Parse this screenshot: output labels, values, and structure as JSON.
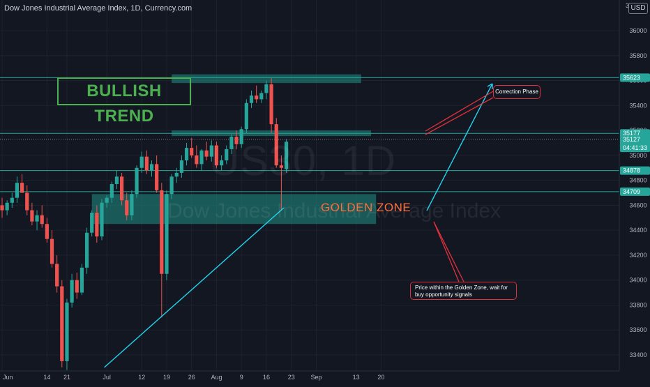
{
  "header": {
    "title": "Dow Jones Industrial Average Index, 1D, Currency.com",
    "currency_button": "USD"
  },
  "watermark": {
    "symbol": "US30, 1D",
    "name": "Dow Jones Industrial Average Index"
  },
  "annotations": {
    "trend_label": "BULLISH TREND",
    "zone_label": "GOLDEN ZONE",
    "note_correction": "Correction Phase",
    "note_golden": "Price within the Golden Zone, wait for buy opportunity signals"
  },
  "colors": {
    "background": "#131722",
    "up": "#26a69a",
    "down": "#ef5350",
    "zone": "#1f8f84",
    "trend_line": "#22d3ee",
    "callout": "#e0313b",
    "label_green": "#4caf50"
  },
  "chart_data": {
    "type": "candlestick",
    "title": "Dow Jones Industrial Average Index, 1D, Currency.com",
    "xlabel": "",
    "ylabel": "",
    "ylim": [
      33200,
      36200
    ],
    "y_ticks": [
      33400,
      33600,
      33800,
      34000,
      34200,
      34400,
      34600,
      34800,
      35000,
      35200,
      35400,
      35600,
      35800,
      36000
    ],
    "x_ticks": [
      {
        "i": 0,
        "label": "Jun"
      },
      {
        "i": 9,
        "label": "14"
      },
      {
        "i": 13,
        "label": "21"
      },
      {
        "i": 21,
        "label": "Jul"
      },
      {
        "i": 28,
        "label": "12"
      },
      {
        "i": 33,
        "label": "19"
      },
      {
        "i": 38,
        "label": "26"
      },
      {
        "i": 43,
        "label": "Aug"
      },
      {
        "i": 48,
        "label": "9"
      },
      {
        "i": 53,
        "label": "16"
      },
      {
        "i": 58,
        "label": "23"
      },
      {
        "i": 63,
        "label": "Sep"
      },
      {
        "i": 71,
        "label": "13"
      },
      {
        "i": 76,
        "label": "20"
      }
    ],
    "price_labels": [
      {
        "value": 35623,
        "label": "35623"
      },
      {
        "value": 35177,
        "label": "35177"
      },
      {
        "value": 35127,
        "label": "35127",
        "countdown": "04:41:33"
      },
      {
        "value": 34878,
        "label": "34878"
      },
      {
        "value": 34709,
        "label": "34709"
      }
    ],
    "levels": [
      {
        "value": 35623,
        "style": "solid"
      },
      {
        "value": 35177,
        "style": "solid"
      },
      {
        "value": 35127,
        "style": "dotted"
      },
      {
        "value": 34878,
        "style": "solid"
      },
      {
        "value": 34709,
        "style": "solid"
      }
    ],
    "zones": [
      {
        "i_start": 34,
        "i_end": 72,
        "top": 35650,
        "bottom": 35580
      },
      {
        "i_start": 34,
        "i_end": 74,
        "top": 35200,
        "bottom": 35155
      },
      {
        "i_start": 18,
        "i_end": 75,
        "top": 34690,
        "bottom": 34450
      }
    ],
    "trendline": {
      "from": {
        "i": 20.5,
        "value": 33300
      },
      "to": {
        "i": 56.5,
        "value": 34580
      }
    },
    "candles": [
      {
        "o": 34600,
        "h": 34660,
        "l": 34500,
        "c": 34560
      },
      {
        "o": 34560,
        "h": 34640,
        "l": 34520,
        "c": 34620
      },
      {
        "o": 34620,
        "h": 34700,
        "l": 34580,
        "c": 34660
      },
      {
        "o": 34660,
        "h": 34830,
        "l": 34620,
        "c": 34780
      },
      {
        "o": 34780,
        "h": 34850,
        "l": 34700,
        "c": 34700
      },
      {
        "o": 34700,
        "h": 34760,
        "l": 34520,
        "c": 34560
      },
      {
        "o": 34560,
        "h": 34620,
        "l": 34440,
        "c": 34470
      },
      {
        "o": 34470,
        "h": 34560,
        "l": 34400,
        "c": 34520
      },
      {
        "o": 34520,
        "h": 34600,
        "l": 34420,
        "c": 34450
      },
      {
        "o": 34450,
        "h": 34500,
        "l": 34300,
        "c": 34330
      },
      {
        "o": 34330,
        "h": 34400,
        "l": 34100,
        "c": 34130
      },
      {
        "o": 34130,
        "h": 34200,
        "l": 33900,
        "c": 33950
      },
      {
        "o": 33950,
        "h": 34000,
        "l": 33300,
        "c": 33350
      },
      {
        "o": 33350,
        "h": 33850,
        "l": 33280,
        "c": 33820
      },
      {
        "o": 33820,
        "h": 34050,
        "l": 33780,
        "c": 34000
      },
      {
        "o": 34000,
        "h": 34060,
        "l": 33850,
        "c": 33900
      },
      {
        "o": 33900,
        "h": 34130,
        "l": 33880,
        "c": 34100
      },
      {
        "o": 34100,
        "h": 34420,
        "l": 34050,
        "c": 34380
      },
      {
        "o": 34380,
        "h": 34560,
        "l": 34350,
        "c": 34540
      },
      {
        "o": 34540,
        "h": 34600,
        "l": 34300,
        "c": 34350
      },
      {
        "o": 34350,
        "h": 34650,
        "l": 34320,
        "c": 34620
      },
      {
        "o": 34620,
        "h": 34680,
        "l": 34580,
        "c": 34660
      },
      {
        "o": 34660,
        "h": 34790,
        "l": 34620,
        "c": 34770
      },
      {
        "o": 34770,
        "h": 34880,
        "l": 34730,
        "c": 34830
      },
      {
        "o": 34830,
        "h": 34860,
        "l": 34600,
        "c": 34640
      },
      {
        "o": 34640,
        "h": 34700,
        "l": 34480,
        "c": 34520
      },
      {
        "o": 34520,
        "h": 34720,
        "l": 34480,
        "c": 34690
      },
      {
        "o": 34690,
        "h": 34920,
        "l": 34660,
        "c": 34900
      },
      {
        "o": 34900,
        "h": 35030,
        "l": 34860,
        "c": 34990
      },
      {
        "o": 34990,
        "h": 35040,
        "l": 34850,
        "c": 34880
      },
      {
        "o": 34880,
        "h": 34960,
        "l": 34830,
        "c": 34930
      },
      {
        "o": 34930,
        "h": 35000,
        "l": 34700,
        "c": 34720
      },
      {
        "o": 34720,
        "h": 34780,
        "l": 33700,
        "c": 34050
      },
      {
        "o": 34050,
        "h": 34720,
        "l": 34000,
        "c": 34690
      },
      {
        "o": 34690,
        "h": 34850,
        "l": 34650,
        "c": 34830
      },
      {
        "o": 34830,
        "h": 34900,
        "l": 34780,
        "c": 34860
      },
      {
        "o": 34860,
        "h": 35000,
        "l": 34820,
        "c": 34960
      },
      {
        "o": 34960,
        "h": 35100,
        "l": 34920,
        "c": 35060
      },
      {
        "o": 35060,
        "h": 35140,
        "l": 34980,
        "c": 35000
      },
      {
        "o": 35000,
        "h": 35080,
        "l": 34900,
        "c": 34930
      },
      {
        "o": 34930,
        "h": 35050,
        "l": 34880,
        "c": 35040
      },
      {
        "o": 35040,
        "h": 35110,
        "l": 34960,
        "c": 34990
      },
      {
        "o": 34990,
        "h": 35120,
        "l": 34950,
        "c": 35080
      },
      {
        "o": 35080,
        "h": 35110,
        "l": 34900,
        "c": 34920
      },
      {
        "o": 34920,
        "h": 35000,
        "l": 34880,
        "c": 34960
      },
      {
        "o": 34960,
        "h": 35080,
        "l": 34930,
        "c": 35050
      },
      {
        "o": 35050,
        "h": 35170,
        "l": 35010,
        "c": 35150
      },
      {
        "o": 35150,
        "h": 35200,
        "l": 35050,
        "c": 35090
      },
      {
        "o": 35090,
        "h": 35230,
        "l": 35060,
        "c": 35210
      },
      {
        "o": 35210,
        "h": 35450,
        "l": 35180,
        "c": 35420
      },
      {
        "o": 35420,
        "h": 35520,
        "l": 35380,
        "c": 35480
      },
      {
        "o": 35480,
        "h": 35560,
        "l": 35420,
        "c": 35450
      },
      {
        "o": 35450,
        "h": 35520,
        "l": 35420,
        "c": 35500
      },
      {
        "o": 35500,
        "h": 35600,
        "l": 35450,
        "c": 35570
      },
      {
        "o": 35570,
        "h": 35620,
        "l": 35180,
        "c": 35250
      },
      {
        "o": 35250,
        "h": 35300,
        "l": 34900,
        "c": 34920
      },
      {
        "o": 34920,
        "h": 35000,
        "l": 34560,
        "c": 34900
      },
      {
        "o": 34890,
        "h": 35130,
        "l": 34860,
        "c": 35110
      }
    ]
  }
}
